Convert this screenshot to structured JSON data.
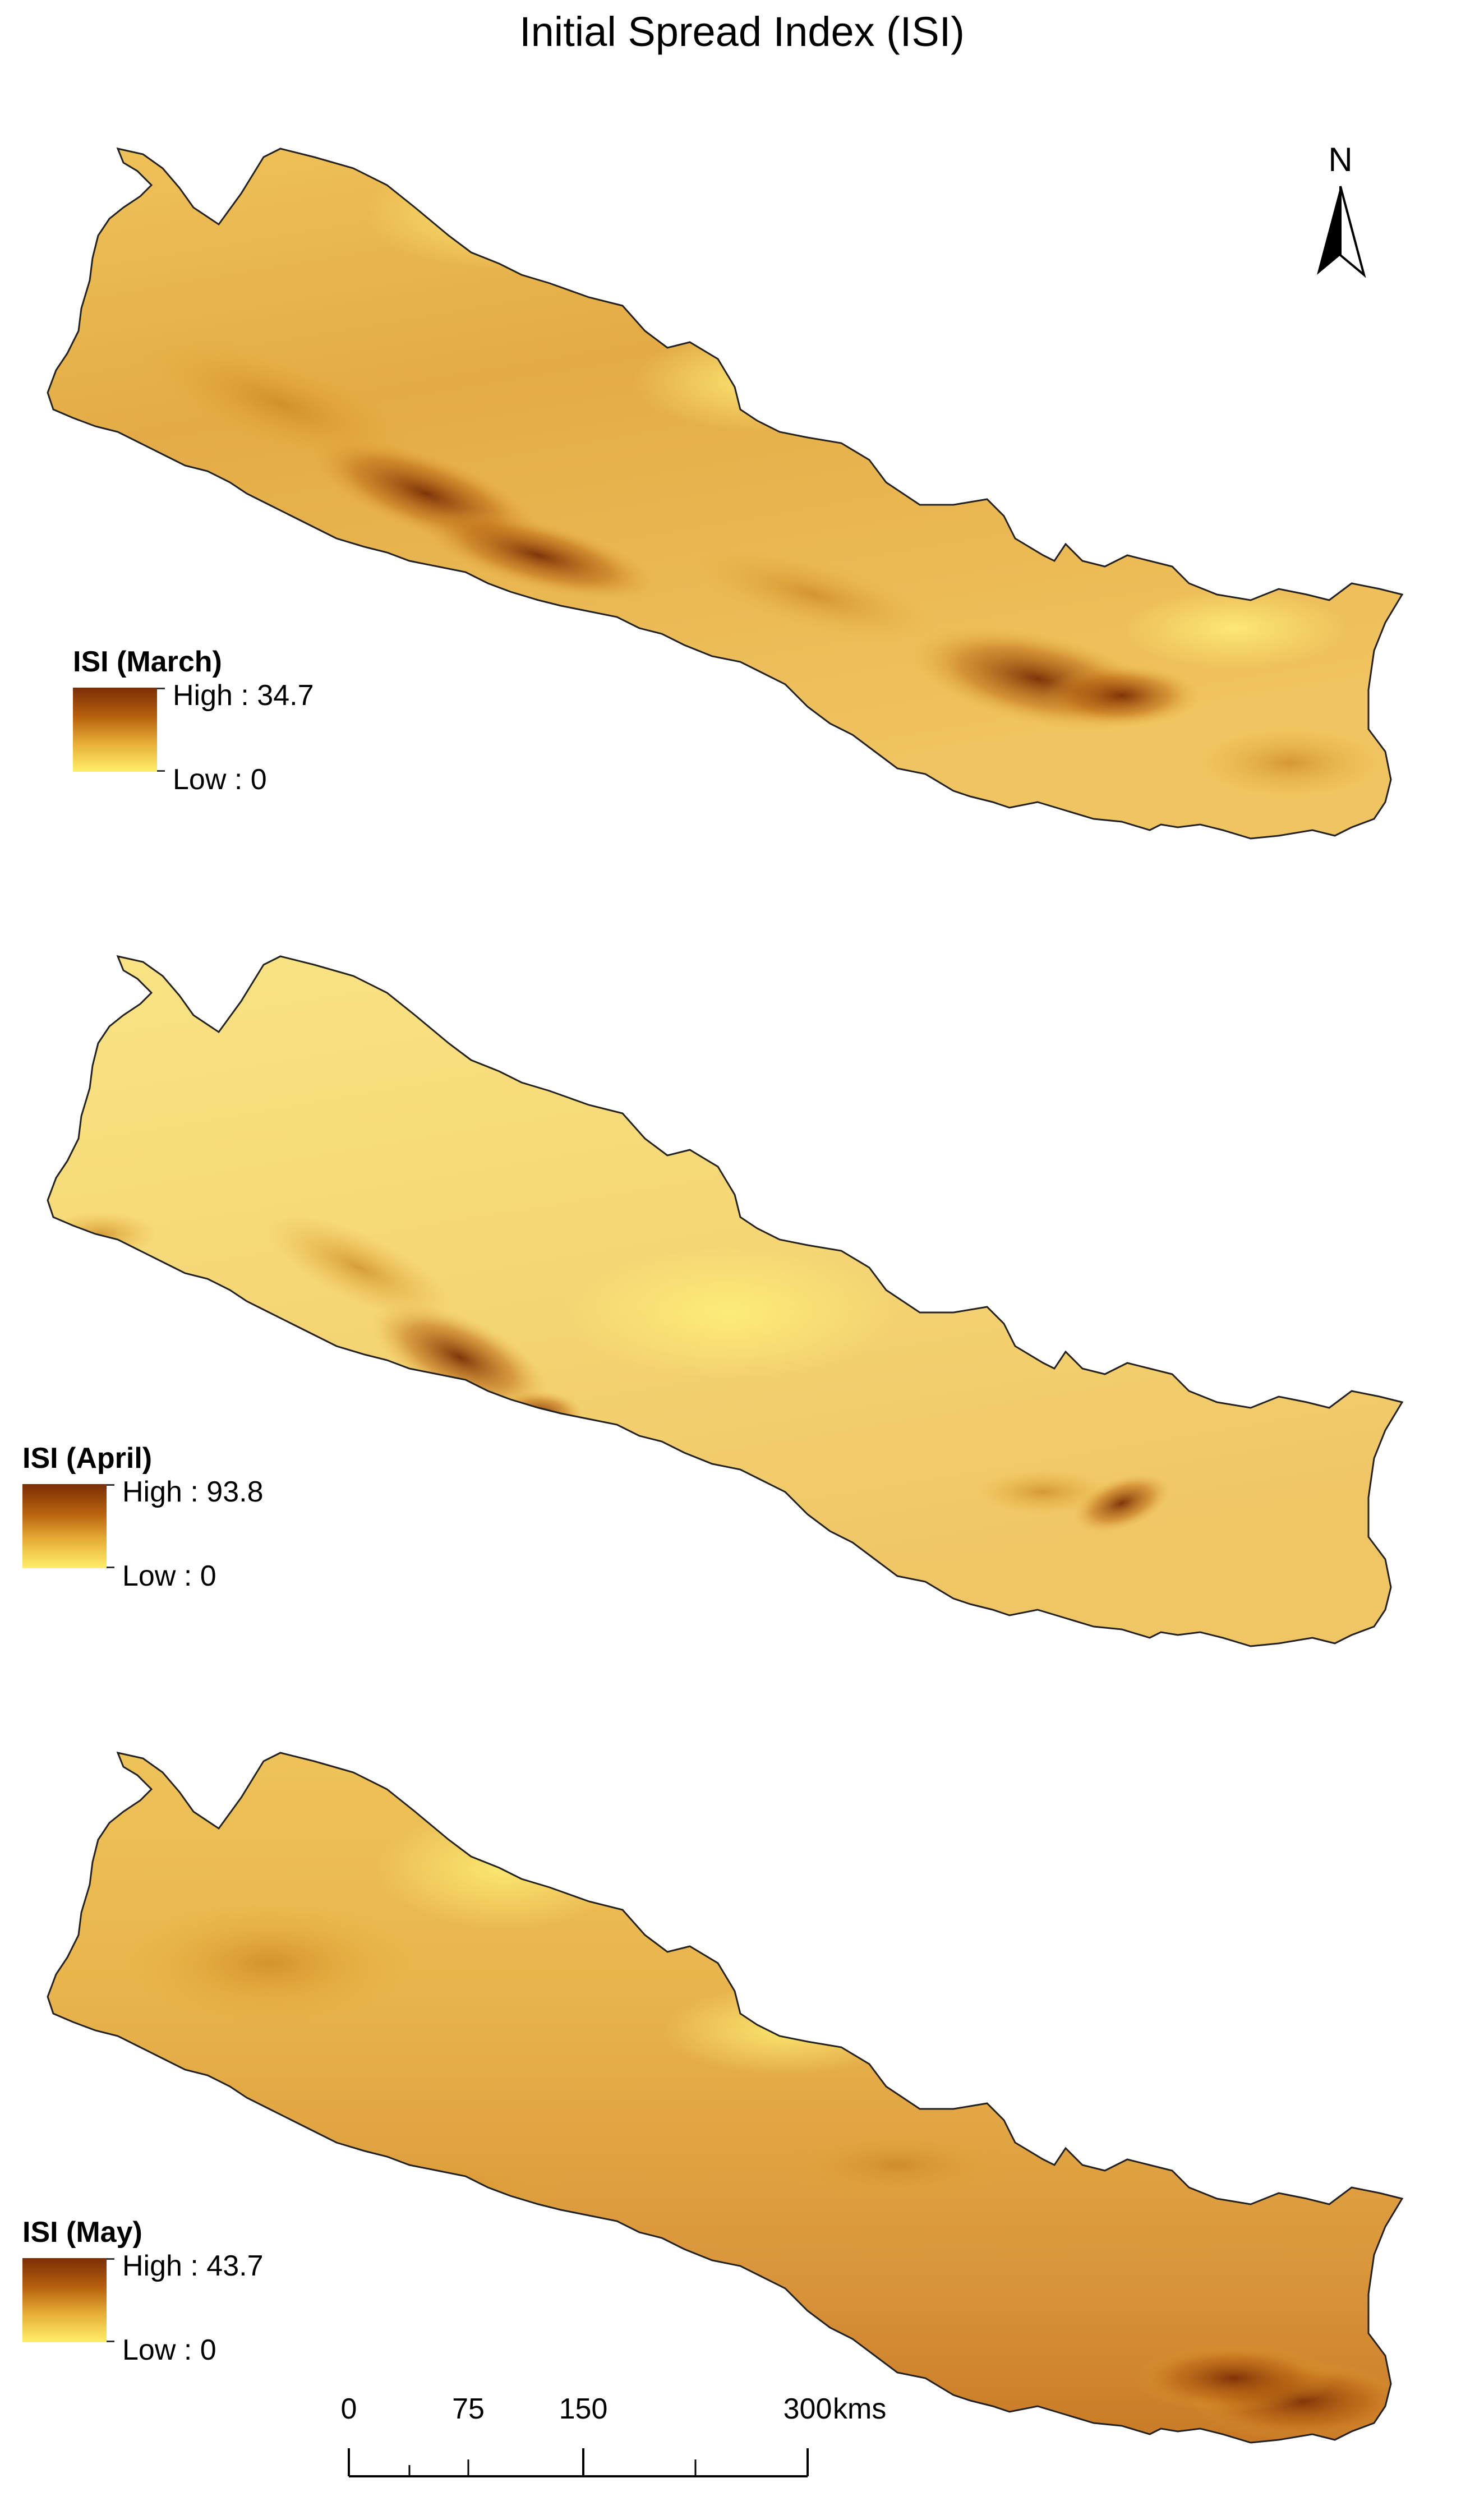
{
  "title": "Initial Spread Index (ISI)",
  "north_arrow": {
    "label": "N"
  },
  "maps": [
    {
      "legend_title": "ISI (March)",
      "high_label": "High : 34.7",
      "low_label": "Low : 0",
      "colors": {
        "high": "#7a2e05",
        "low": "#ffef6a",
        "base": "#e8b54a"
      }
    },
    {
      "legend_title": "ISI (April)",
      "high_label": "High : 93.8",
      "low_label": "Low : 0",
      "colors": {
        "high": "#7a2e05",
        "low": "#ffef6a",
        "base": "#f6dc7c"
      }
    },
    {
      "legend_title": "ISI (May)",
      "high_label": "High : 43.7",
      "low_label": "Low : 0",
      "colors": {
        "high": "#7a2e05",
        "low": "#ffef6a",
        "base": "#e9b750"
      }
    }
  ],
  "scale_bar": {
    "ticks": [
      "0",
      "75",
      "150",
      "300"
    ],
    "unit": "kms"
  }
}
